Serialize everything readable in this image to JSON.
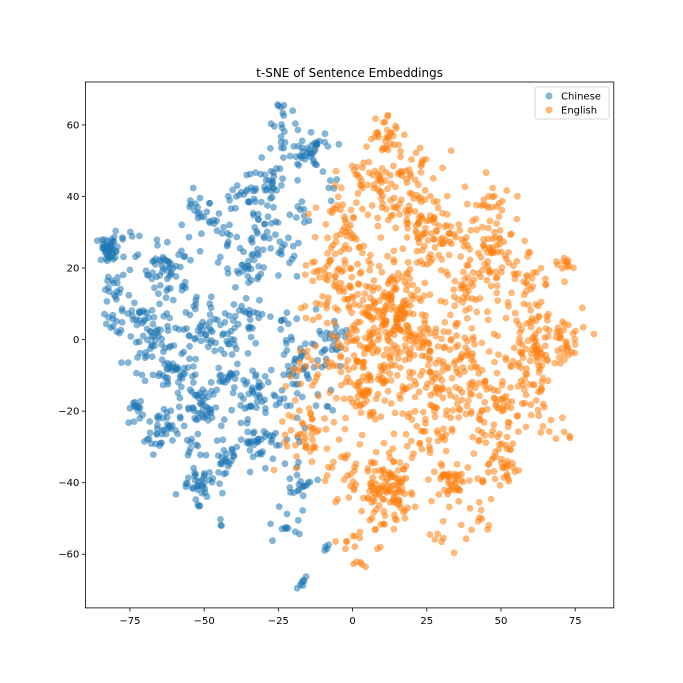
{
  "chart_data": {
    "type": "scatter",
    "title": "t-SNE of Sentence Embeddings",
    "xlabel": "",
    "ylabel": "",
    "xlim": [
      -90,
      88
    ],
    "ylim": [
      -75,
      72
    ],
    "xticks": [
      -75,
      -50,
      -25,
      0,
      25,
      50,
      75
    ],
    "yticks": [
      -60,
      -40,
      -20,
      0,
      20,
      40,
      60
    ],
    "xtick_labels": [
      "−75",
      "−50",
      "−25",
      "0",
      "25",
      "50",
      "75"
    ],
    "ytick_labels": [
      "−60",
      "−40",
      "−20",
      "0",
      "20",
      "40",
      "60"
    ],
    "grid": false,
    "legend_position": "top-right",
    "marker_alpha": 0.55,
    "series": [
      {
        "name": "Chinese",
        "color": "#1f77b4",
        "clusters": [
          {
            "cx": -82,
            "cy": 25,
            "sx": 2.2,
            "sy": 1.8,
            "n": 45
          },
          {
            "cx": -80,
            "cy": 14,
            "sx": 2.0,
            "sy": 2.0,
            "n": 18
          },
          {
            "cx": -81,
            "cy": 5,
            "sx": 1.5,
            "sy": 1.5,
            "n": 12
          },
          {
            "cx": -73,
            "cy": 6,
            "sx": 2.5,
            "sy": 2.0,
            "n": 15
          },
          {
            "cx": -75,
            "cy": 27,
            "sx": 2.0,
            "sy": 2.0,
            "n": 6
          },
          {
            "cx": -62,
            "cy": 20,
            "sx": 4.0,
            "sy": 4.0,
            "n": 55
          },
          {
            "cx": -66,
            "cy": 3,
            "sx": 4.0,
            "sy": 4.0,
            "n": 40
          },
          {
            "cx": -59,
            "cy": -9,
            "sx": 3.0,
            "sy": 3.0,
            "n": 35
          },
          {
            "cx": -70,
            "cy": -5,
            "sx": 4.0,
            "sy": 4.0,
            "n": 20
          },
          {
            "cx": -73,
            "cy": -20,
            "sx": 2.0,
            "sy": 2.0,
            "n": 14
          },
          {
            "cx": -64,
            "cy": -25,
            "sx": 3.0,
            "sy": 3.0,
            "n": 40
          },
          {
            "cx": -52,
            "cy": 4,
            "sx": 4.0,
            "sy": 4.0,
            "n": 40
          },
          {
            "cx": -51,
            "cy": -19,
            "sx": 3.0,
            "sy": 3.0,
            "n": 40
          },
          {
            "cx": -52,
            "cy": -40,
            "sx": 3.0,
            "sy": 2.5,
            "n": 40
          },
          {
            "cx": -43,
            "cy": -33,
            "sx": 3.0,
            "sy": 3.0,
            "n": 25
          },
          {
            "cx": -54,
            "cy": -30,
            "sx": 2.0,
            "sy": 2.0,
            "n": 10
          },
          {
            "cx": -44,
            "cy": -10,
            "sx": 4.0,
            "sy": 4.0,
            "n": 25
          },
          {
            "cx": -34,
            "cy": -16,
            "sx": 3.0,
            "sy": 3.0,
            "n": 40
          },
          {
            "cx": -31,
            "cy": -28,
            "sx": 3.0,
            "sy": 3.0,
            "n": 35
          },
          {
            "cx": -40,
            "cy": 1,
            "sx": 4.0,
            "sy": 3.0,
            "n": 25
          },
          {
            "cx": -36,
            "cy": 20,
            "sx": 4.0,
            "sy": 4.0,
            "n": 35
          },
          {
            "cx": -35,
            "cy": 6,
            "sx": 3.0,
            "sy": 3.0,
            "n": 20
          },
          {
            "cx": -52,
            "cy": 34,
            "sx": 3.0,
            "sy": 3.0,
            "n": 25
          },
          {
            "cx": -43,
            "cy": 30,
            "sx": 2.0,
            "sy": 2.0,
            "n": 8
          },
          {
            "cx": -31,
            "cy": 30,
            "sx": 2.5,
            "sy": 2.5,
            "n": 20
          },
          {
            "cx": -35,
            "cy": 40,
            "sx": 5.0,
            "sy": 3.0,
            "n": 30
          },
          {
            "cx": -27,
            "cy": 45,
            "sx": 4.0,
            "sy": 4.0,
            "n": 25
          },
          {
            "cx": -23,
            "cy": 57,
            "sx": 2.5,
            "sy": 2.5,
            "n": 14
          },
          {
            "cx": -23,
            "cy": 65,
            "sx": 1.5,
            "sy": 0.5,
            "n": 6
          },
          {
            "cx": -16,
            "cy": 52,
            "sx": 3.0,
            "sy": 2.0,
            "n": 28
          },
          {
            "cx": -11,
            "cy": 54,
            "sx": 3.0,
            "sy": 2.0,
            "n": 12
          },
          {
            "cx": -8,
            "cy": 44,
            "sx": 2.0,
            "sy": 2.0,
            "n": 6
          },
          {
            "cx": -18,
            "cy": 38,
            "sx": 3.0,
            "sy": 3.0,
            "n": 10
          },
          {
            "cx": -22,
            "cy": 22,
            "sx": 3.0,
            "sy": 5.0,
            "n": 14
          },
          {
            "cx": -22,
            "cy": 3,
            "sx": 3.0,
            "sy": 4.0,
            "n": 12
          },
          {
            "cx": -18,
            "cy": -8,
            "sx": 3.0,
            "sy": 4.0,
            "n": 28
          },
          {
            "cx": -10,
            "cy": -2,
            "sx": 3.0,
            "sy": 3.0,
            "n": 18
          },
          {
            "cx": -6,
            "cy": 2,
            "sx": 3.0,
            "sy": 3.0,
            "n": 14
          },
          {
            "cx": -24,
            "cy": -17,
            "sx": 3.0,
            "sy": 3.0,
            "n": 10
          },
          {
            "cx": -20,
            "cy": -30,
            "sx": 3.0,
            "sy": 3.0,
            "n": 8
          },
          {
            "cx": -17,
            "cy": -41,
            "sx": 2.5,
            "sy": 2.0,
            "n": 18
          },
          {
            "cx": -23,
            "cy": -51,
            "sx": 3.0,
            "sy": 3.0,
            "n": 12
          },
          {
            "cx": -17,
            "cy": -68,
            "sx": 1.0,
            "sy": 1.0,
            "n": 7
          },
          {
            "cx": -9,
            "cy": -58,
            "sx": 1.0,
            "sy": 1.0,
            "n": 4
          },
          {
            "cx": -44,
            "cy": -51,
            "sx": 0.5,
            "sy": 1.0,
            "n": 3
          },
          {
            "cx": -8,
            "cy": -16,
            "sx": 2.0,
            "sy": 3.0,
            "n": 6
          }
        ]
      },
      {
        "name": "English",
        "color": "#ff7f0e",
        "clusters": [
          {
            "cx": 15,
            "cy": 9,
            "sx": 6.0,
            "sy": 6.0,
            "n": 140
          },
          {
            "cx": 5,
            "cy": 0,
            "sx": 6.0,
            "sy": 6.0,
            "n": 90
          },
          {
            "cx": 5,
            "cy": -15,
            "sx": 3.5,
            "sy": 3.5,
            "n": 55
          },
          {
            "cx": 12,
            "cy": -43,
            "sx": 5.0,
            "sy": 5.0,
            "n": 110
          },
          {
            "cx": 33,
            "cy": -40,
            "sx": 3.0,
            "sy": 3.0,
            "n": 45
          },
          {
            "cx": 27,
            "cy": 29,
            "sx": 5.0,
            "sy": 4.0,
            "n": 75
          },
          {
            "cx": 48,
            "cy": 26,
            "sx": 5.0,
            "sy": 5.0,
            "n": 60
          },
          {
            "cx": 63,
            "cy": 0,
            "sx": 5.0,
            "sy": 6.0,
            "n": 90
          },
          {
            "cx": 48,
            "cy": -20,
            "sx": 6.0,
            "sy": 5.0,
            "n": 70
          },
          {
            "cx": 50,
            "cy": -35,
            "sx": 4.0,
            "sy": 4.0,
            "n": 40
          },
          {
            "cx": 35,
            "cy": -5,
            "sx": 8.0,
            "sy": 6.0,
            "n": 80
          },
          {
            "cx": 25,
            "cy": -22,
            "sx": 8.0,
            "sy": 6.0,
            "n": 70
          },
          {
            "cx": 8,
            "cy": 45,
            "sx": 5.0,
            "sy": 4.0,
            "n": 55
          },
          {
            "cx": 10,
            "cy": 58,
            "sx": 3.0,
            "sy": 3.0,
            "n": 30
          },
          {
            "cx": 20,
            "cy": 48,
            "sx": 4.0,
            "sy": 4.0,
            "n": 25
          },
          {
            "cx": -5,
            "cy": 32,
            "sx": 5.0,
            "sy": 5.0,
            "n": 35
          },
          {
            "cx": -10,
            "cy": 15,
            "sx": 4.0,
            "sy": 6.0,
            "n": 35
          },
          {
            "cx": -12,
            "cy": -10,
            "sx": 5.0,
            "sy": 6.0,
            "n": 35
          },
          {
            "cx": -15,
            "cy": -28,
            "sx": 5.0,
            "sy": 6.0,
            "n": 30
          },
          {
            "cx": 0,
            "cy": -38,
            "sx": 4.0,
            "sy": 5.0,
            "n": 30
          },
          {
            "cx": 2,
            "cy": -55,
            "sx": 4.0,
            "sy": 3.0,
            "n": 15
          },
          {
            "cx": 3,
            "cy": -62,
            "sx": 1.5,
            "sy": 1.0,
            "n": 5
          },
          {
            "cx": 40,
            "cy": 15,
            "sx": 6.0,
            "sy": 5.0,
            "n": 50
          },
          {
            "cx": 58,
            "cy": 15,
            "sx": 4.0,
            "sy": 4.0,
            "n": 25
          },
          {
            "cx": 72,
            "cy": 21,
            "sx": 1.5,
            "sy": 2.0,
            "n": 12
          },
          {
            "cx": 73,
            "cy": -2,
            "sx": 3.0,
            "sy": 4.0,
            "n": 18
          },
          {
            "cx": 68,
            "cy": -25,
            "sx": 4.0,
            "sy": 3.0,
            "n": 10
          },
          {
            "cx": 60,
            "cy": -15,
            "sx": 3.0,
            "sy": 3.0,
            "n": 20
          },
          {
            "cx": 30,
            "cy": -55,
            "sx": 5.0,
            "sy": 2.0,
            "n": 10
          },
          {
            "cx": 42,
            "cy": -50,
            "sx": 3.0,
            "sy": 2.0,
            "n": 8
          },
          {
            "cx": 47,
            "cy": 39,
            "sx": 5.0,
            "sy": 3.0,
            "n": 20
          },
          {
            "cx": 17,
            "cy": 35,
            "sx": 5.0,
            "sy": 4.0,
            "n": 30
          },
          {
            "cx": 0,
            "cy": 20,
            "sx": 5.0,
            "sy": 5.0,
            "n": 45
          },
          {
            "cx": 20,
            "cy": -5,
            "sx": 8.0,
            "sy": 6.0,
            "n": 70
          },
          {
            "cx": -13,
            "cy": -22,
            "sx": 2.0,
            "sy": 2.0,
            "n": 10
          }
        ]
      }
    ]
  }
}
